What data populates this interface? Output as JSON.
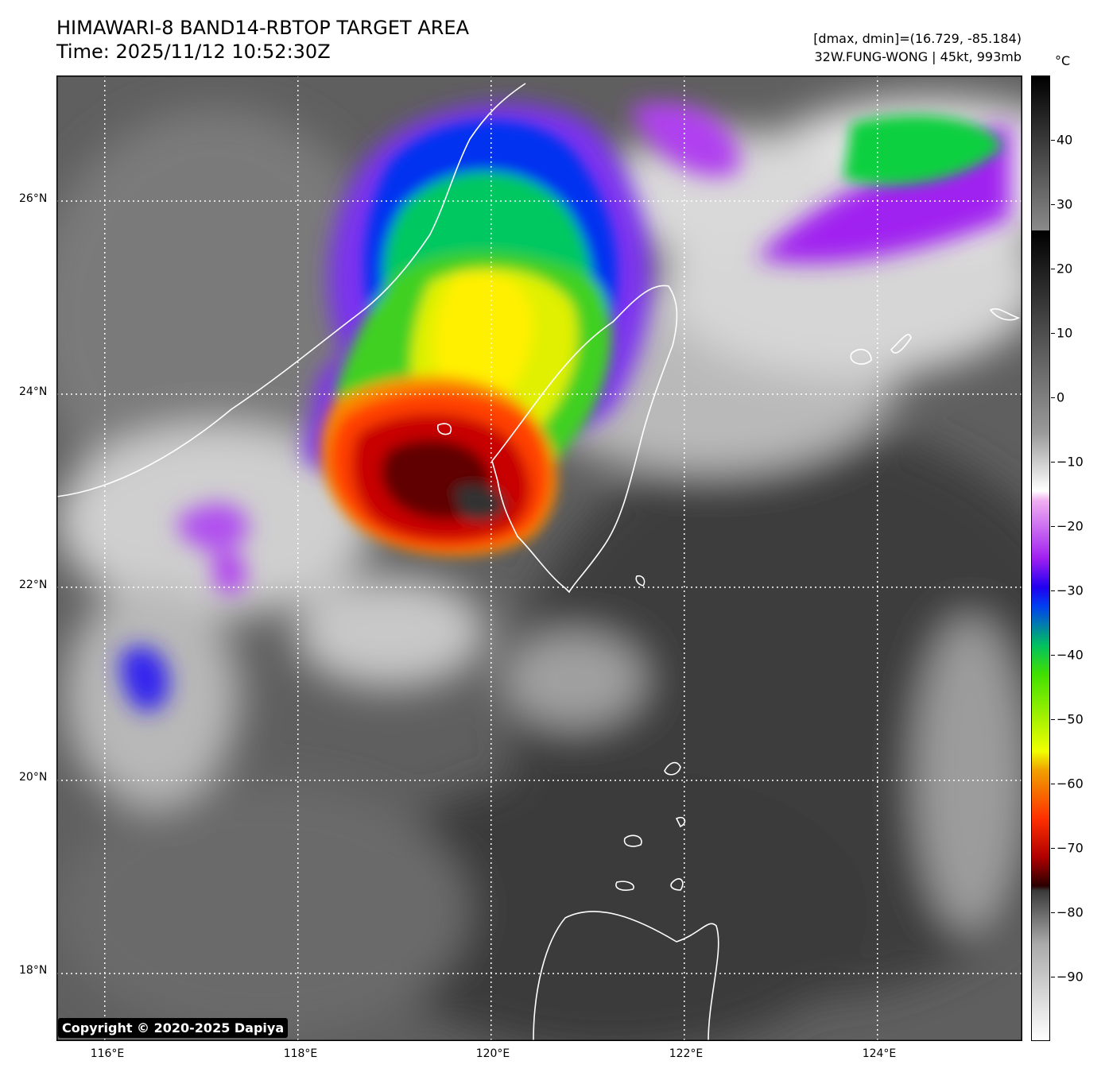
{
  "header": {
    "title": "HIMAWARI-8 BAND14-RBTOP TARGET AREA",
    "time": "Time: 2025/11/12 10:52:30Z",
    "dmax_dmin": "[dmax, dmin]=(16.729, -85.184)",
    "storm": "32W.FUNG-WONG | 45kt, 993mb"
  },
  "map": {
    "lat_ticks": [
      "26°N",
      "24°N",
      "22°N",
      "20°N",
      "18°N"
    ],
    "lon_ticks": [
      "116°E",
      "118°E",
      "120°E",
      "122°E",
      "124°E"
    ],
    "lat_values": [
      26,
      24,
      22,
      20,
      18
    ],
    "lon_values": [
      116,
      118,
      120,
      122,
      124
    ],
    "lat_range": [
      17.3,
      27.3
    ],
    "lon_range": [
      115.5,
      125.5
    ],
    "gridlines": "dotted white",
    "coastlines": "white"
  },
  "colorbar": {
    "unit": "°C",
    "ticks": [
      "40",
      "30",
      "20",
      "10",
      "0",
      "−10",
      "−20",
      "−30",
      "−40",
      "−50",
      "−60",
      "−70",
      "−80",
      "−90"
    ],
    "tick_values": [
      40,
      30,
      20,
      10,
      0,
      -10,
      -20,
      -30,
      -40,
      -50,
      -60,
      -70,
      -80,
      -90
    ],
    "range": [
      -100,
      50
    ]
  },
  "copyright": "Copyright © 2020-2025 Dapiya"
}
